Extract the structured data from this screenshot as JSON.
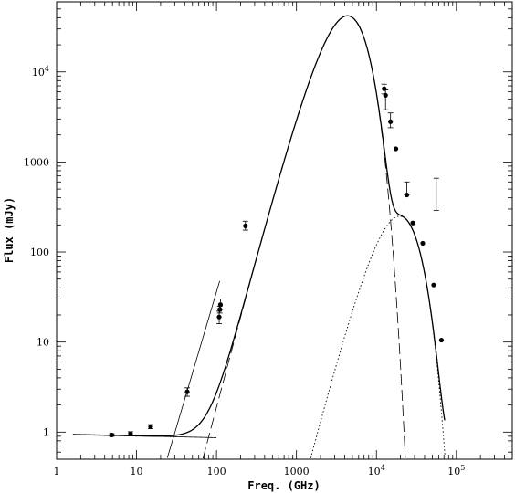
{
  "chart_data": {
    "type": "scatter",
    "title": "",
    "xlabel": "Freq. (GHz)",
    "ylabel": "Flux (mJy)",
    "x_scale": "log",
    "y_scale": "log",
    "xlim": [
      1,
      500000
    ],
    "ylim": [
      0.5,
      60000
    ],
    "grid": false,
    "legend": "none",
    "x_ticks": [
      {
        "value": 1,
        "label": "1",
        "sup": ""
      },
      {
        "value": 10,
        "label": "10",
        "sup": ""
      },
      {
        "value": 100,
        "label": "100",
        "sup": ""
      },
      {
        "value": 1000,
        "label": "1000",
        "sup": ""
      },
      {
        "value": 10000,
        "label": "10",
        "sup": "4"
      },
      {
        "value": 100000,
        "label": "10",
        "sup": "5"
      }
    ],
    "y_ticks": [
      {
        "value": 1,
        "label": "1",
        "sup": ""
      },
      {
        "value": 10,
        "label": "10",
        "sup": ""
      },
      {
        "value": 100,
        "label": "100",
        "sup": ""
      },
      {
        "value": 1000,
        "label": "1000",
        "sup": ""
      },
      {
        "value": 10000,
        "label": "10",
        "sup": "4"
      }
    ],
    "series": [
      {
        "style": "points",
        "x": [
          4.9,
          8.4,
          15,
          43,
          108,
          110,
          112,
          230,
          12500,
          13000,
          15000,
          17500,
          24000,
          28500,
          38000,
          52000,
          65000
        ],
        "y": [
          0.93,
          0.96,
          1.15,
          2.8,
          19,
          23,
          26,
          195,
          6500,
          5500,
          2800,
          1400,
          430,
          210,
          125,
          43,
          10.5
        ],
        "yerr_low": [
          0.03,
          0.05,
          0.06,
          0.3,
          3,
          2,
          3,
          20,
          800,
          1700,
          400,
          0,
          0,
          0,
          0,
          0,
          0
        ],
        "yerr_high": [
          0.03,
          0.05,
          0.06,
          0.3,
          3,
          2,
          4,
          25,
          800,
          800,
          700,
          0,
          170,
          0,
          0,
          0,
          0
        ]
      },
      {
        "style": "errorbar-only",
        "x": [
          56000
        ],
        "y": [
          440
        ],
        "yerr_low": [
          150
        ],
        "yerr_high": [
          220
        ]
      }
    ]
  }
}
